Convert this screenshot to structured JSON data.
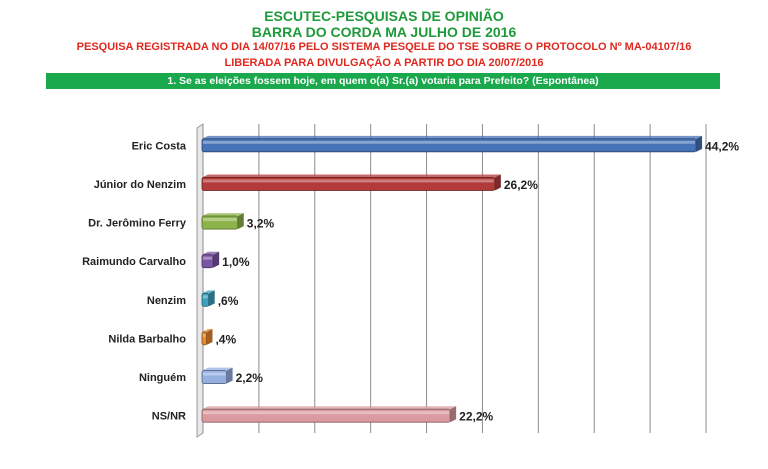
{
  "header": {
    "line1": "ESCUTEC-PESQUISAS DE OPINIÃO",
    "line2": "BARRA DO CORDA MA JULHO DE 2016",
    "line3": "PESQUISA REGISTRADA NO DIA 14/07/16 PELO SISTEMA PESQELE DO TSE SOBRE O PROTOCOLO Nº MA-04107/16",
    "line4": "LIBERADA PARA DIVULGAÇÃO A PARTIR DO DIA 20/07/2016",
    "question": "1. Se as eleições fossem hoje, em quem o(a) Sr.(a) votaria para Prefeito? (Espontânea)"
  },
  "colors": {
    "title_green": "#1f9a3a",
    "subtitle_red": "#e0281f",
    "question_bar": "#19a84c"
  },
  "chart_data": {
    "type": "bar",
    "orientation": "horizontal",
    "categories": [
      "Eric Costa",
      "Júnior do Nenzim",
      "Dr. Jerômino Ferry",
      "Raimundo Carvalho",
      "Nenzim",
      "Nilda Barbalho",
      "Ninguém",
      "NS/NR"
    ],
    "values": [
      44.2,
      26.2,
      3.2,
      1.0,
      0.6,
      0.4,
      2.2,
      22.2
    ],
    "data_labels": [
      "44,2%",
      "26,2%",
      "3,2%",
      "1,0%",
      ",6%",
      ",4%",
      "2,2%",
      "22,2%"
    ],
    "bar_colors": [
      "#4672b8",
      "#b23a3a",
      "#8db44a",
      "#7a55a3",
      "#3f9fbd",
      "#e8882f",
      "#94afe0",
      "#db9aa0"
    ],
    "xlim": [
      0,
      45
    ],
    "grid": true
  }
}
